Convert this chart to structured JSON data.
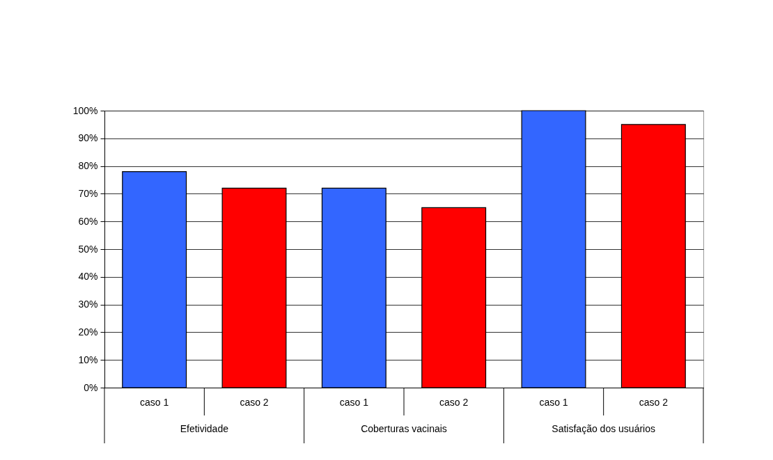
{
  "chart_data": {
    "type": "bar",
    "categories": [
      "caso 1",
      "caso 2",
      "caso 1",
      "caso 2",
      "caso 1",
      "caso 2"
    ],
    "values": [
      78,
      72,
      72,
      65,
      100,
      95
    ],
    "colors": [
      "#3366ff",
      "#ff0000",
      "#3366ff",
      "#ff0000",
      "#3366ff",
      "#ff0000"
    ],
    "ylim": [
      0,
      100
    ],
    "yticks": [
      {
        "value": 0,
        "label": "0%"
      },
      {
        "value": 10,
        "label": "10%"
      },
      {
        "value": 20,
        "label": "20%"
      },
      {
        "value": 30,
        "label": "30%"
      },
      {
        "value": 40,
        "label": "40%"
      },
      {
        "value": 50,
        "label": "50%"
      },
      {
        "value": 60,
        "label": "60%"
      },
      {
        "value": 70,
        "label": "70%"
      },
      {
        "value": 80,
        "label": "80%"
      },
      {
        "value": 90,
        "label": "90%"
      },
      {
        "value": 100,
        "label": "100%"
      }
    ],
    "grid": "y",
    "annotations": [
      "Efetividade",
      "Coberturas vacinais",
      "Satisfação dos usuários"
    ]
  }
}
